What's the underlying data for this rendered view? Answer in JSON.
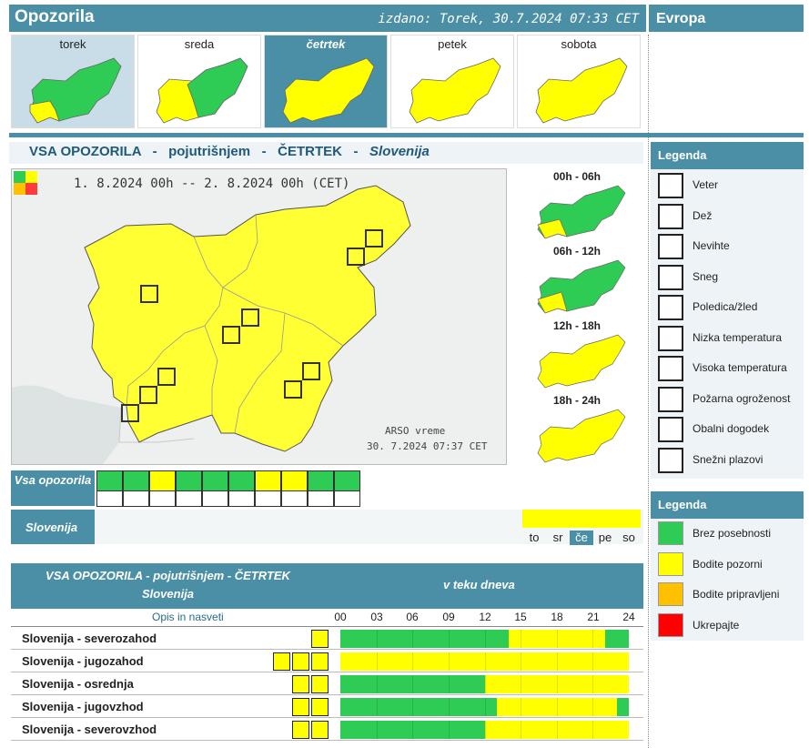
{
  "header": {
    "title": "Opozorila",
    "issued": "izdano: Torek, 30.7.2024 07:33 CET",
    "europe": "Evropa"
  },
  "days": [
    {
      "label": "torek",
      "level": "mixed"
    },
    {
      "label": "sreda",
      "level": "mixed"
    },
    {
      "label": "četrtek",
      "level": "yellow",
      "selected": true
    },
    {
      "label": "petek",
      "level": "yellow"
    },
    {
      "label": "sobota",
      "level": "yellow"
    }
  ],
  "subtitle": {
    "a": "VSA OPOZORILA",
    "b": "pojutrišnjem",
    "c": "ČETRTEK",
    "d": "Slovenija",
    "sep": "-"
  },
  "map": {
    "period": "1. 8.2024 00h -- 2. 8.2024 00h (CET)",
    "source": "ARSO vreme",
    "stamp": "30. 7.2024 07:37 CET"
  },
  "periods": [
    {
      "label": "00h - 06h"
    },
    {
      "label": "06h - 12h"
    },
    {
      "label": "12h - 18h"
    },
    {
      "label": "18h - 24h"
    }
  ],
  "types_label": "Vsa opozorila",
  "region_label": "Slovenija",
  "week": [
    {
      "label": "to",
      "sel": false
    },
    {
      "label": "sr",
      "sel": false
    },
    {
      "label": "če",
      "sel": true
    },
    {
      "label": "pe",
      "sel": false
    },
    {
      "label": "so",
      "sel": false
    }
  ],
  "legend1": {
    "title": "Legenda",
    "items": [
      "Veter",
      "Dež",
      "Nevihte",
      "Sneg",
      "Poledica/žled",
      "Nizka temperatura",
      "Visoka temperatura",
      "Požarna ogroženost",
      "Obalni dogodek",
      "Snežni plazovi"
    ]
  },
  "legend2": {
    "title": "Legenda",
    "items": [
      {
        "label": "Brez posebnosti",
        "color": "#2ecc55"
      },
      {
        "label": "Bodite pozorni",
        "color": "#ffff00"
      },
      {
        "label": "Bodite pripravljeni",
        "color": "#ffc000"
      },
      {
        "label": "Ukrepajte",
        "color": "#ff0000"
      }
    ]
  },
  "table": {
    "title1": "VSA OPOZORILA - pojutrišnjem - ČETRTEK",
    "title2": "Slovenija",
    "during": "v teku dneva",
    "desc": "Opis in nasveti",
    "hours": [
      "00",
      "03",
      "06",
      "09",
      "12",
      "15",
      "18",
      "21",
      "24"
    ],
    "rows": [
      {
        "name": "Slovenija - severozahod",
        "segments": [
          {
            "from": 0,
            "to": 14,
            "c": "green"
          },
          {
            "from": 14,
            "to": 22,
            "c": "yellow"
          },
          {
            "from": 22,
            "to": 24,
            "c": "green"
          }
        ]
      },
      {
        "name": "Slovenija - jugozahod",
        "segments": [
          {
            "from": 0,
            "to": 24,
            "c": "yellow"
          }
        ]
      },
      {
        "name": "Slovenija - osrednja",
        "segments": [
          {
            "from": 0,
            "to": 12,
            "c": "green"
          },
          {
            "from": 12,
            "to": 24,
            "c": "yellow"
          }
        ]
      },
      {
        "name": "Slovenija - jugovzhod",
        "segments": [
          {
            "from": 0,
            "to": 13,
            "c": "green"
          },
          {
            "from": 13,
            "to": 23,
            "c": "yellow"
          },
          {
            "from": 23,
            "to": 24,
            "c": "green"
          }
        ]
      },
      {
        "name": "Slovenija - severovzhod",
        "segments": [
          {
            "from": 0,
            "to": 12,
            "c": "green"
          },
          {
            "from": 12,
            "to": 24,
            "c": "yellow"
          }
        ]
      }
    ]
  }
}
